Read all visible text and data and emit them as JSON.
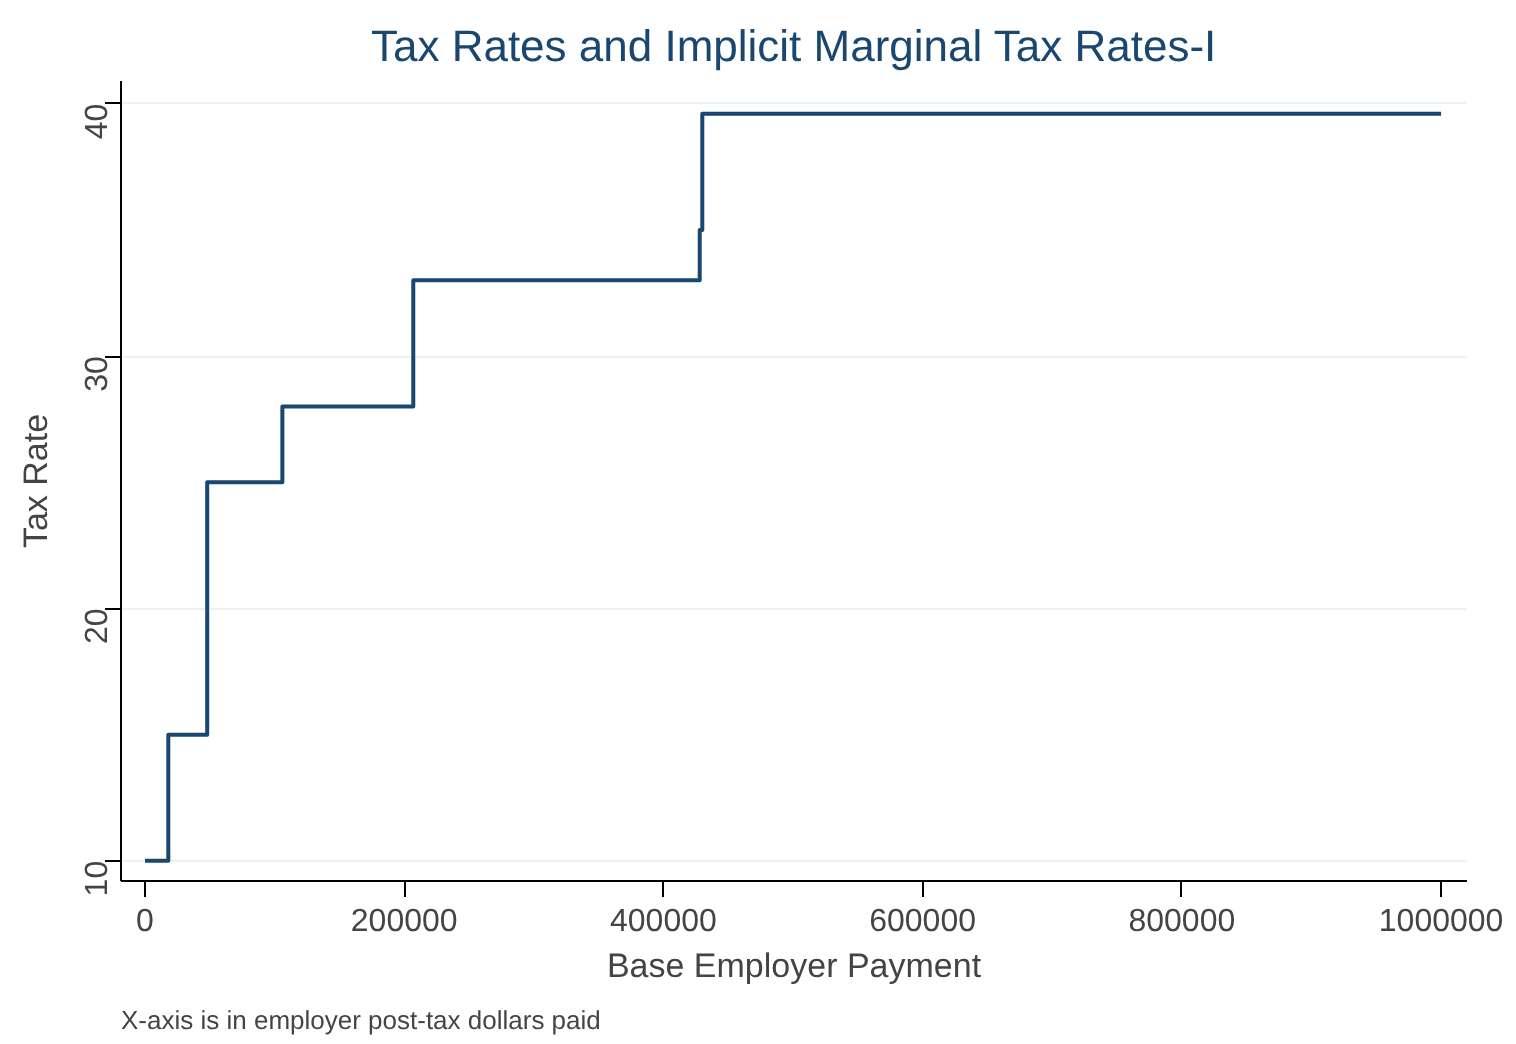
{
  "chart_data": {
    "type": "step",
    "title": "Tax Rates and Implicit Marginal Tax Rates-I",
    "xlabel": "Base Employer Payment",
    "ylabel": "Tax Rate",
    "annotations": [
      "X-axis is in employer post-tax dollars paid"
    ],
    "x": [
      0,
      18000,
      48000,
      106000,
      207000,
      428000,
      430000,
      1000000
    ],
    "series": [
      {
        "color": "#1a476f",
        "values": [
          10,
          15,
          25,
          28,
          33,
          35,
          39.6,
          39.6
        ]
      }
    ],
    "xlim": [
      -18500,
      1020000
    ],
    "xticks": [
      0,
      200000,
      400000,
      600000,
      800000,
      1000000
    ],
    "ylim": [
      9.2,
      40.9
    ],
    "yticks": [
      10,
      20,
      30,
      40
    ],
    "grid": "y"
  }
}
